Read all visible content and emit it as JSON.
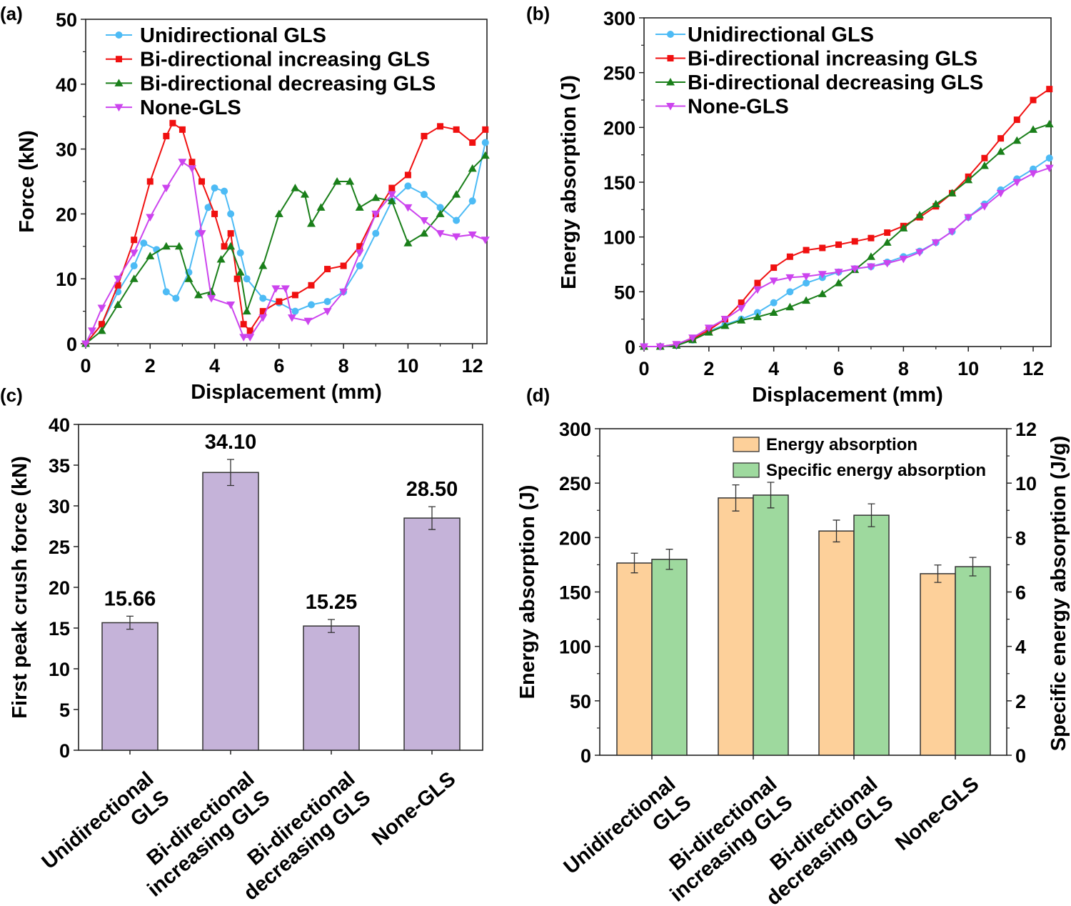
{
  "chart_data": [
    {
      "panel_label": "(a)",
      "type": "line",
      "xlabel": "Displacement (mm)",
      "ylabel": "Force (kN)",
      "xlim": [
        0,
        12.45
      ],
      "ylim": [
        0,
        50
      ],
      "xticks": [
        "0",
        "2",
        "4",
        "6",
        "8",
        "10",
        "12"
      ],
      "yticks": [
        "0",
        "10",
        "20",
        "30",
        "40",
        "50"
      ],
      "legend": "top-left",
      "series": [
        {
          "name": "Unidirectional GLS",
          "color": "#4dbbf5",
          "marker": "circle",
          "x": [
            0,
            0.5,
            1,
            1.5,
            1.8,
            2.2,
            2.5,
            2.8,
            3.2,
            3.5,
            3.8,
            4.0,
            4.3,
            4.5,
            4.8,
            5.0,
            5.5,
            6.0,
            6.5,
            7.0,
            7.5,
            8.0,
            8.5,
            9.0,
            9.5,
            10.0,
            10.5,
            11.0,
            11.5,
            12.0,
            12.4
          ],
          "y": [
            0,
            3,
            8,
            12,
            15.5,
            14.5,
            8,
            7,
            11,
            17,
            21,
            24,
            23.5,
            20,
            14,
            10,
            7,
            6.3,
            5,
            6,
            6.5,
            8,
            12,
            17,
            22,
            24.3,
            23,
            21,
            19,
            22,
            31
          ]
        },
        {
          "name": "Bi-directional increasing GLS",
          "color": "#f01010",
          "marker": "square",
          "x": [
            0,
            0.5,
            1,
            1.5,
            2,
            2.5,
            2.7,
            3.0,
            3.3,
            3.6,
            4.0,
            4.3,
            4.5,
            4.7,
            4.9,
            5.1,
            5.5,
            6.0,
            6.5,
            7.0,
            7.5,
            8.0,
            8.5,
            9.0,
            9.5,
            10.0,
            10.5,
            11.0,
            11.5,
            12.0,
            12.4
          ],
          "y": [
            0,
            3,
            9,
            16,
            25,
            32,
            34,
            33,
            28,
            25,
            20,
            15,
            17,
            10,
            3,
            2,
            5,
            6.5,
            7.5,
            9,
            11.5,
            12,
            15,
            20,
            24,
            26,
            32,
            33.5,
            33,
            31,
            33
          ]
        },
        {
          "name": "Bi-directional decreasing GLS",
          "color": "#1a7f1a",
          "marker": "triangle-up",
          "x": [
            0,
            0.5,
            1,
            1.5,
            2,
            2.5,
            2.9,
            3.2,
            3.5,
            3.9,
            4.2,
            4.5,
            4.8,
            5.0,
            5.5,
            6.0,
            6.5,
            6.8,
            7.0,
            7.3,
            7.8,
            8.2,
            8.5,
            9.0,
            9.5,
            10.0,
            10.5,
            11.0,
            11.5,
            12.0,
            12.4
          ],
          "y": [
            0,
            2,
            6,
            10,
            13.5,
            15,
            15,
            10,
            7.5,
            8,
            13,
            15,
            11,
            5,
            12,
            20,
            24,
            23,
            18.5,
            21,
            25,
            25,
            21,
            22.5,
            22,
            15.5,
            17,
            20,
            23,
            27,
            29
          ]
        },
        {
          "name": "None-GLS",
          "color": "#cc44ee",
          "marker": "triangle-down",
          "x": [
            0,
            0.2,
            0.5,
            1,
            1.5,
            2,
            2.5,
            3.0,
            3.3,
            3.6,
            3.9,
            4.5,
            4.9,
            5.1,
            5.5,
            5.9,
            6.2,
            6.4,
            6.9,
            7.5,
            8.0,
            8.5,
            9.0,
            9.5,
            10.0,
            10.5,
            11.0,
            11.5,
            12.0,
            12.4
          ],
          "y": [
            0,
            2,
            5.5,
            10,
            14,
            19.5,
            24,
            28,
            27,
            17,
            7,
            6,
            1,
            1,
            4,
            8.5,
            8.5,
            4,
            3.5,
            5,
            8,
            14,
            20,
            23,
            21,
            19,
            17,
            16.5,
            16.8,
            16
          ]
        }
      ]
    },
    {
      "panel_label": "(b)",
      "type": "line",
      "xlabel": "Displacement (mm)",
      "ylabel": "Energy absorption (J)",
      "xlim": [
        0,
        12.55
      ],
      "ylim": [
        0,
        300
      ],
      "xticks": [
        "0",
        "2",
        "4",
        "6",
        "8",
        "10",
        "12"
      ],
      "yticks": [
        "0",
        "50",
        "100",
        "150",
        "200",
        "250",
        "300"
      ],
      "legend": "top-left",
      "series": [
        {
          "name": "Unidirectional GLS",
          "color": "#4dbbf5",
          "marker": "circle",
          "x": [
            0,
            0.5,
            1,
            1.5,
            2,
            2.5,
            3,
            3.5,
            4,
            4.5,
            5,
            5.5,
            6,
            6.5,
            7,
            7.5,
            8,
            8.5,
            9,
            9.5,
            10,
            10.5,
            11,
            11.5,
            12,
            12.5
          ],
          "y": [
            0,
            0,
            1,
            6,
            14,
            20,
            25,
            31,
            40,
            50,
            58,
            63,
            68,
            71,
            73,
            77,
            82,
            87,
            95,
            105,
            118,
            130,
            143,
            153,
            162,
            172
          ]
        },
        {
          "name": "Bi-directional increasing GLS",
          "color": "#f01010",
          "marker": "square",
          "x": [
            0,
            0.5,
            1,
            1.5,
            2,
            2.5,
            3,
            3.5,
            4,
            4.5,
            5,
            5.5,
            6,
            6.5,
            7,
            7.5,
            8,
            8.5,
            9,
            9.5,
            10,
            10.5,
            11,
            11.5,
            12,
            12.5
          ],
          "y": [
            0,
            0,
            2,
            7,
            15,
            25,
            40,
            58,
            72,
            82,
            88,
            90,
            93,
            96,
            99,
            104,
            110,
            118,
            128,
            140,
            155,
            172,
            190,
            207,
            225,
            235
          ]
        },
        {
          "name": "Bi-directional decreasing GLS",
          "color": "#1a7f1a",
          "marker": "triangle-up",
          "x": [
            0,
            0.5,
            1,
            1.5,
            2,
            2.5,
            3,
            3.5,
            4,
            4.5,
            5,
            5.5,
            6,
            6.5,
            7,
            7.5,
            8,
            8.5,
            9,
            9.5,
            10,
            10.5,
            11,
            11.5,
            12,
            12.5
          ],
          "y": [
            0,
            0,
            1,
            6,
            13,
            19,
            24,
            27,
            31,
            36,
            42,
            48,
            58,
            70,
            82,
            95,
            108,
            120,
            130,
            140,
            152,
            165,
            178,
            188,
            198,
            203
          ]
        },
        {
          "name": "None-GLS",
          "color": "#cc44ee",
          "marker": "triangle-down",
          "x": [
            0,
            0.5,
            1,
            1.5,
            2,
            2.5,
            3,
            3.5,
            4,
            4.5,
            5,
            5.5,
            6,
            6.5,
            7,
            7.5,
            8,
            8.5,
            9,
            9.5,
            10,
            10.5,
            11,
            11.5,
            12,
            12.5
          ],
          "y": [
            0,
            0,
            2,
            8,
            17,
            25,
            35,
            52,
            60,
            63,
            64,
            66,
            68,
            71,
            73,
            76,
            80,
            86,
            95,
            105,
            118,
            128,
            140,
            150,
            158,
            163
          ]
        }
      ]
    },
    {
      "panel_label": "(c)",
      "type": "bar",
      "ylabel": "First peak crush force (kN)",
      "ylim": [
        0,
        40
      ],
      "yticks": [
        "0",
        "5",
        "10",
        "15",
        "20",
        "25",
        "30",
        "35",
        "40"
      ],
      "categories": [
        [
          "Unidirectional",
          "GLS"
        ],
        [
          "Bi-directional",
          "increasing GLS"
        ],
        [
          "Bi-directional",
          "decreasing GLS"
        ],
        [
          "None-GLS"
        ]
      ],
      "values": [
        15.66,
        34.1,
        15.25,
        28.5
      ],
      "value_labels": [
        "15.66",
        "34.10",
        "15.25",
        "28.50"
      ],
      "errors": [
        0.8,
        1.6,
        0.8,
        1.4
      ],
      "color": "#c5b3d9"
    },
    {
      "panel_label": "(d)",
      "type": "bar",
      "ylabel": "Energy absorption (J)",
      "ylabel_right": "Specific energy absorption (J/g)",
      "ylim": [
        0,
        300
      ],
      "ylim_right": [
        0,
        12
      ],
      "yticks": [
        "0",
        "50",
        "100",
        "150",
        "200",
        "250",
        "300"
      ],
      "yticks_right": [
        "0",
        "2",
        "4",
        "6",
        "8",
        "10",
        "12"
      ],
      "legend": "top-right",
      "categories": [
        [
          "Unidirectional",
          "GLS"
        ],
        [
          "Bi-directional",
          "increasing GLS"
        ],
        [
          "Bi-directional",
          "decreasing GLS"
        ],
        [
          "None-GLS"
        ]
      ],
      "series": [
        {
          "name": "Energy absorption",
          "axis": "left",
          "color": "#fdd09a",
          "values": [
            176.6,
            236.4,
            206,
            166.8
          ],
          "errors": [
            9,
            12,
            10,
            8
          ]
        },
        {
          "name": "Specific energy absorption",
          "axis": "right",
          "color": "#9ed99e",
          "values": [
            7.2,
            9.56,
            8.82,
            6.93
          ],
          "errors": [
            0.37,
            0.47,
            0.42,
            0.34
          ]
        }
      ]
    }
  ]
}
